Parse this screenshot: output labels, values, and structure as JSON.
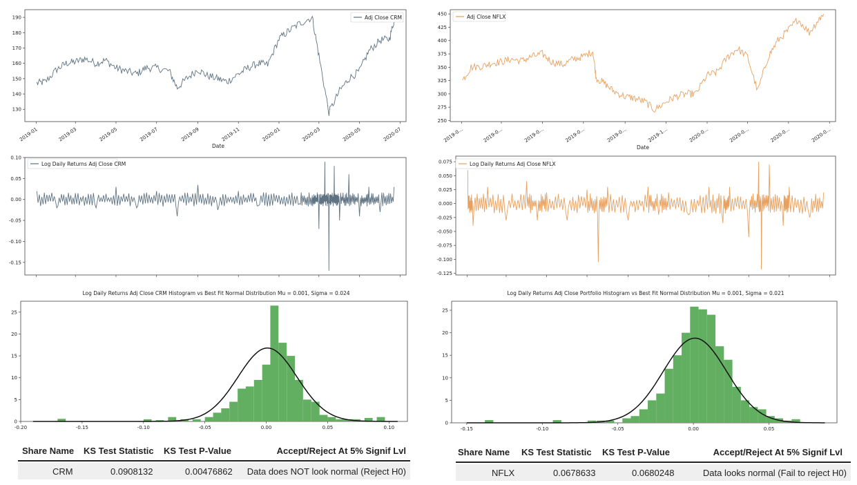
{
  "chart_data": [
    {
      "id": "crm_price",
      "type": "line",
      "legend": "Adj Close CRM",
      "legend_position": "upper-right",
      "color": "#5f7382",
      "xlabel": "Date",
      "x_ticks": [
        "2019-01",
        "2019-03",
        "2019-05",
        "2019-07",
        "2019-09",
        "2019-11",
        "2020-01",
        "2020-03",
        "2020-05",
        "2020-07"
      ],
      "y_ticks": [
        "130",
        "140",
        "150",
        "160",
        "170",
        "180",
        "190"
      ],
      "ylim": [
        122,
        195
      ],
      "series": [
        {
          "x": [
            "2019-01-02",
            "2019-01-15",
            "2019-02-01",
            "2019-02-15",
            "2019-03-01",
            "2019-03-15",
            "2019-04-01",
            "2019-04-15",
            "2019-05-01",
            "2019-05-15",
            "2019-06-01",
            "2019-06-15",
            "2019-07-01",
            "2019-07-20",
            "2019-08-01",
            "2019-08-15",
            "2019-09-01",
            "2019-09-15",
            "2019-10-01",
            "2019-10-15",
            "2019-11-01",
            "2019-11-15",
            "2019-12-01",
            "2019-12-15",
            "2020-01-01",
            "2020-01-15",
            "2020-02-01",
            "2020-02-20",
            "2020-03-01",
            "2020-03-16",
            "2020-04-01",
            "2020-04-15",
            "2020-05-01",
            "2020-05-15",
            "2020-06-01",
            "2020-06-15",
            "2020-06-22"
          ],
          "values": [
            147,
            148,
            156,
            160,
            161,
            163,
            160,
            162,
            157,
            155,
            153,
            157,
            157,
            155,
            144,
            150,
            156,
            152,
            150,
            148,
            153,
            157,
            160,
            159,
            176,
            181,
            186,
            190,
            165,
            128,
            142,
            150,
            155,
            168,
            175,
            176,
            188
          ]
        }
      ]
    },
    {
      "id": "nflx_price",
      "type": "line",
      "legend": "Adj Close NFLX",
      "legend_position": "upper-left",
      "color": "#e8a05e",
      "xlabel": "Date",
      "x_ticks": [
        "2019-0...",
        "2019-0...",
        "2019-0...",
        "2019-0...",
        "2019-0...",
        "2019-1...",
        "2020-0...",
        "2020-0...",
        "2020-0...",
        "2020-0..."
      ],
      "y_ticks": [
        "250",
        "275",
        "300",
        "325",
        "350",
        "375",
        "400",
        "425",
        "450"
      ],
      "ylim": [
        248,
        458
      ],
      "series": [
        {
          "x": [
            "2019-01-02",
            "2019-01-15",
            "2019-02-01",
            "2019-02-15",
            "2019-03-01",
            "2019-03-15",
            "2019-04-01",
            "2019-04-15",
            "2019-05-01",
            "2019-05-15",
            "2019-06-01",
            "2019-06-15",
            "2019-07-01",
            "2019-07-15",
            "2019-07-20",
            "2019-08-01",
            "2019-08-15",
            "2019-09-01",
            "2019-09-15",
            "2019-10-01",
            "2019-10-15",
            "2019-11-01",
            "2019-11-15",
            "2019-12-01",
            "2019-12-15",
            "2020-01-01",
            "2020-01-15",
            "2020-02-01",
            "2020-02-15",
            "2020-03-01",
            "2020-03-16",
            "2020-04-01",
            "2020-04-15",
            "2020-05-01",
            "2020-05-15",
            "2020-06-01",
            "2020-06-15",
            "2020-06-22"
          ],
          "values": [
            325,
            350,
            352,
            358,
            360,
            365,
            362,
            370,
            375,
            360,
            355,
            365,
            370,
            380,
            330,
            320,
            305,
            295,
            292,
            285,
            270,
            285,
            295,
            300,
            300,
            335,
            340,
            370,
            385,
            370,
            305,
            370,
            400,
            420,
            440,
            415,
            440,
            450
          ]
        }
      ]
    },
    {
      "id": "crm_returns",
      "type": "line",
      "legend": "Log Daily Returns Adj Close CRM",
      "legend_position": "upper-left",
      "color": "#5f7382",
      "y_ticks": [
        "-0.15",
        "-0.10",
        "-0.05",
        "0.00",
        "0.05",
        "0.10"
      ],
      "ylim": [
        -0.18,
        0.1
      ],
      "series": [
        {
          "x": [
            "2019-01-02",
            "2019-02-01",
            "2019-03-01",
            "2019-04-01",
            "2019-05-01",
            "2019-06-01",
            "2019-07-01",
            "2019-08-01",
            "2019-09-01",
            "2019-10-01",
            "2019-11-01",
            "2019-12-01",
            "2020-01-01",
            "2020-02-01",
            "2020-02-20",
            "2020-03-01",
            "2020-03-10",
            "2020-03-16",
            "2020-03-24",
            "2020-04-01",
            "2020-04-15",
            "2020-05-01",
            "2020-05-15",
            "2020-06-01",
            "2020-06-22"
          ],
          "values": [
            0.02,
            -0.02,
            0.015,
            -0.02,
            0.03,
            -0.02,
            0.02,
            -0.04,
            0.035,
            -0.025,
            0.02,
            -0.015,
            0.01,
            -0.01,
            0.01,
            -0.07,
            0.09,
            -0.17,
            0.08,
            -0.05,
            0.06,
            -0.04,
            0.03,
            -0.03,
            0.03
          ]
        }
      ]
    },
    {
      "id": "nflx_returns",
      "type": "line",
      "legend": "Log Daily Returns Adj Close NFLX",
      "legend_position": "upper-left",
      "color": "#e8a05e",
      "y_ticks": [
        "-0.125",
        "-0.100",
        "-0.075",
        "-0.050",
        "-0.025",
        "0.000",
        "0.025",
        "0.050",
        "0.075"
      ],
      "ylim": [
        -0.128,
        0.085
      ],
      "series": [
        {
          "x": [
            "2019-01-02",
            "2019-01-10",
            "2019-02-01",
            "2019-03-01",
            "2019-04-01",
            "2019-04-17",
            "2019-05-01",
            "2019-06-01",
            "2019-07-01",
            "2019-07-18",
            "2019-08-01",
            "2019-09-01",
            "2019-10-01",
            "2019-10-17",
            "2019-11-01",
            "2019-12-01",
            "2020-01-01",
            "2020-01-22",
            "2020-02-01",
            "2020-03-01",
            "2020-03-16",
            "2020-03-20",
            "2020-04-01",
            "2020-04-22",
            "2020-05-01",
            "2020-06-01",
            "2020-06-22"
          ],
          "values": [
            0.06,
            -0.04,
            0.03,
            -0.03,
            0.04,
            -0.03,
            0.02,
            -0.03,
            0.025,
            -0.105,
            0.03,
            -0.03,
            0.03,
            -0.02,
            0.02,
            -0.02,
            0.03,
            -0.035,
            0.03,
            -0.06,
            0.075,
            -0.118,
            0.07,
            -0.04,
            0.03,
            -0.025,
            0.02
          ]
        }
      ]
    },
    {
      "id": "crm_hist",
      "type": "bar",
      "title": "Log Daily Returns Adj Close CRM Histogram vs Best Fit Normal Distribution Mu = 0.001,  Sigma = 0.024",
      "color": "#5aab5a",
      "x_ticks": [
        "-0.20",
        "-0.15",
        "-0.10",
        "-0.05",
        "0.00",
        "0.05",
        "0.10"
      ],
      "y_ticks": [
        "0",
        "5",
        "10",
        "15",
        "20",
        "25"
      ],
      "xlim": [
        -0.2,
        0.115
      ],
      "ylim": [
        0,
        27.5
      ],
      "bin_width": 0.00667,
      "bins_start": [
        -0.17,
        -0.1,
        -0.09,
        -0.08,
        -0.07,
        -0.06,
        -0.05,
        -0.0433,
        -0.0367,
        -0.03,
        -0.0233,
        -0.0167,
        -0.01,
        -0.0033,
        0.0033,
        0.01,
        0.0167,
        0.0233,
        0.03,
        0.0367,
        0.0433,
        0.05,
        0.0567,
        0.0633,
        0.07,
        0.08,
        0.09
      ],
      "counts": [
        0.6,
        0.5,
        0.3,
        1,
        0.5,
        0.5,
        1,
        2,
        3,
        4.5,
        7.5,
        8,
        9.5,
        13,
        26.5,
        18,
        15,
        9.5,
        5,
        4.5,
        1.5,
        1,
        0.5,
        0.5,
        0.5,
        0.8,
        1
      ],
      "fit": {
        "mu": 0.001,
        "sigma": 0.024,
        "peak": 16.8,
        "color": "#111111"
      }
    },
    {
      "id": "nflx_hist",
      "type": "bar",
      "title": "Log Daily Returns Adj Close Portfolio Histogram vs Best Fit Normal Distribution Mu = 0.001,  Sigma = 0.021",
      "color": "#5aab5a",
      "x_ticks": [
        "-0.15",
        "-0.10",
        "-0.05",
        "0.00",
        "0.05"
      ],
      "y_ticks": [
        "0",
        "5",
        "10",
        "15",
        "20",
        "25"
      ],
      "xlim": [
        -0.16,
        0.095
      ],
      "ylim": [
        0,
        27
      ],
      "bin_width": 0.0056,
      "bins_start": [
        -0.138,
        -0.093,
        -0.07,
        -0.064,
        -0.058,
        -0.047,
        -0.0414,
        -0.0358,
        -0.0302,
        -0.0246,
        -0.019,
        -0.0134,
        -0.0078,
        -0.0022,
        0.0034,
        0.009,
        0.0146,
        0.0202,
        0.0258,
        0.0314,
        0.037,
        0.0426,
        0.0482,
        0.0538,
        0.0594,
        0.065
      ],
      "counts": [
        0.6,
        0.6,
        0.5,
        0.5,
        0.5,
        1,
        1.5,
        3,
        5,
        6.5,
        12,
        15,
        20,
        25.8,
        25.2,
        24,
        17,
        14,
        8,
        5,
        3.5,
        3,
        1.5,
        1,
        0.5,
        0.8
      ],
      "fit": {
        "mu": 0.001,
        "sigma": 0.021,
        "peak": 18.8,
        "color": "#111111"
      }
    }
  ],
  "tables": [
    {
      "headers": [
        "Share Name",
        "KS Test Statistic",
        "KS Test P-Value",
        "Accept/Reject At 5% Signif Lvl"
      ],
      "row": [
        "CRM",
        "0.0908132",
        "0.00476862",
        "Data does NOT look normal (Reject H0)"
      ]
    },
    {
      "headers": [
        "Share Name",
        "KS Test Statistic",
        "KS Test P-Value",
        "Accept/Reject At 5% Signif Lvl"
      ],
      "row": [
        "NFLX",
        "0.0678633",
        "0.0680248",
        "Data looks normal (Fail to reject H0)"
      ]
    }
  ]
}
